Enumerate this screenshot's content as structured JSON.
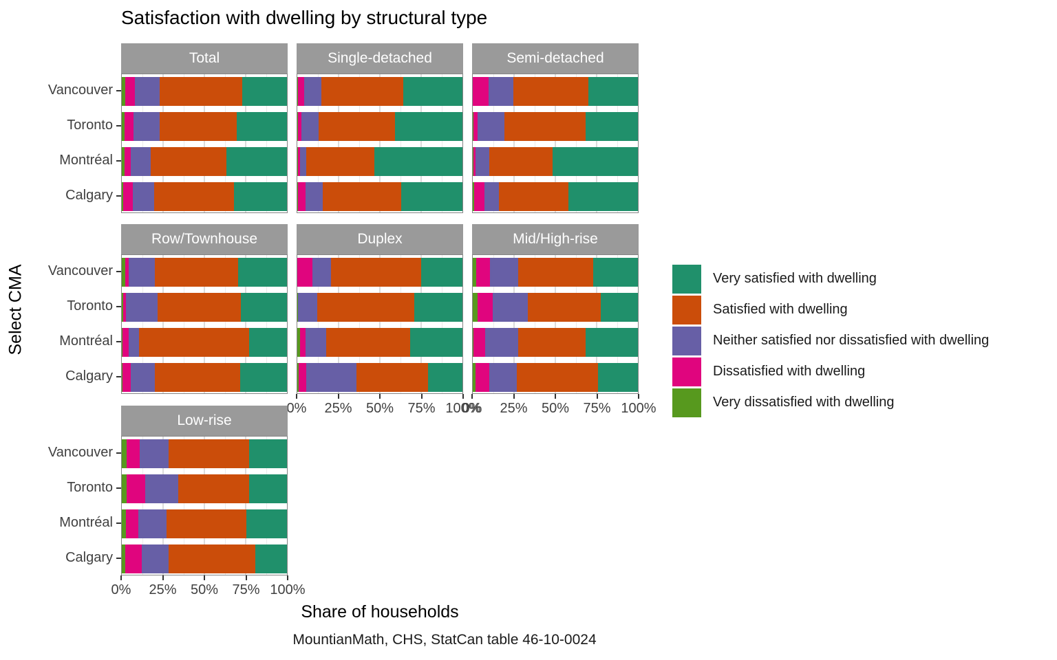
{
  "chart_data": {
    "type": "bar",
    "variant": "horizontal-stacked-faceted",
    "title": "Satisfaction with dwelling by structural type",
    "xlabel": "Share of households",
    "ylabel": "Select CMA",
    "caption": "MountianMath, CHS, StatCan table 46-10-0024",
    "xlim": [
      0,
      100
    ],
    "x_ticks": [
      "0%",
      "25%",
      "50%",
      "75%",
      "100%"
    ],
    "x_tick_values": [
      0,
      25,
      50,
      75,
      100
    ],
    "grid": "on",
    "legend_position": "right",
    "categories": [
      "Vancouver",
      "Toronto",
      "Montréal",
      "Calgary"
    ],
    "segments": [
      {
        "key": "very_dissatisfied",
        "label": "Very dissatisfied with dwelling",
        "color": "#57991e"
      },
      {
        "key": "dissatisfied",
        "label": "Dissatisfied with dwelling",
        "color": "#e0057e"
      },
      {
        "key": "neither",
        "label": "Neither satisfied nor dissatisfied with dwelling",
        "color": "#675fa6"
      },
      {
        "key": "satisfied",
        "label": "Satisfied with dwelling",
        "color": "#cb4d0a"
      },
      {
        "key": "very_satisfied",
        "label": "Very satisfied with dwelling",
        "color": "#20906b"
      }
    ],
    "legend_order": [
      4,
      3,
      2,
      1,
      0
    ],
    "facets": [
      {
        "name": "Total",
        "rows": [
          [
            2,
            6,
            15,
            50,
            27
          ],
          [
            1.5,
            5.5,
            16,
            46.5,
            30.5
          ],
          [
            1.5,
            4,
            12,
            46,
            36.5
          ],
          [
            1,
            5.5,
            13,
            48.5,
            32
          ]
        ]
      },
      {
        "name": "Single-detached",
        "rows": [
          [
            0.5,
            3.5,
            10.5,
            49.5,
            36
          ],
          [
            0.5,
            2,
            10.5,
            46,
            41
          ],
          [
            0.5,
            1,
            4,
            41,
            53.5
          ],
          [
            0.5,
            4.5,
            10.5,
            47.5,
            37
          ]
        ]
      },
      {
        "name": "Semi-detached",
        "rows": [
          [
            0,
            9.5,
            15,
            45.5,
            30
          ],
          [
            0.5,
            2.5,
            16,
            49.5,
            31.5
          ],
          [
            0.5,
            1,
            8.5,
            38.5,
            51.5
          ],
          [
            1,
            6,
            9,
            42,
            42
          ]
        ]
      },
      {
        "name": "Row/Townhouse",
        "rows": [
          [
            2,
            2,
            16,
            50.5,
            29.5
          ],
          [
            1,
            1.5,
            19,
            50.5,
            28
          ],
          [
            0.5,
            3.5,
            6.5,
            66.5,
            23
          ],
          [
            0.5,
            5,
            14.5,
            51.5,
            28.5
          ]
        ]
      },
      {
        "name": "Duplex",
        "rows": [
          [
            0,
            9,
            11.5,
            54.5,
            25
          ],
          [
            0.5,
            0,
            11.5,
            59,
            29
          ],
          [
            1.5,
            3.5,
            12.5,
            51,
            31.5
          ],
          [
            1,
            4.5,
            30.5,
            43,
            21
          ]
        ]
      },
      {
        "name": "Mid/High-rise",
        "rows": [
          [
            2,
            8.5,
            17,
            45.5,
            27
          ],
          [
            3,
            9,
            21.5,
            44,
            22.5
          ],
          [
            0.5,
            7,
            20,
            41,
            31.5
          ],
          [
            1.5,
            8.5,
            16.5,
            49.5,
            24
          ]
        ]
      },
      {
        "name": "Low-rise",
        "rows": [
          [
            3,
            8,
            17.5,
            48.5,
            23
          ],
          [
            3,
            11,
            20,
            43,
            23
          ],
          [
            2.5,
            7.5,
            17,
            48.5,
            24.5
          ],
          [
            2,
            10,
            16.5,
            52.5,
            19
          ]
        ]
      }
    ]
  }
}
